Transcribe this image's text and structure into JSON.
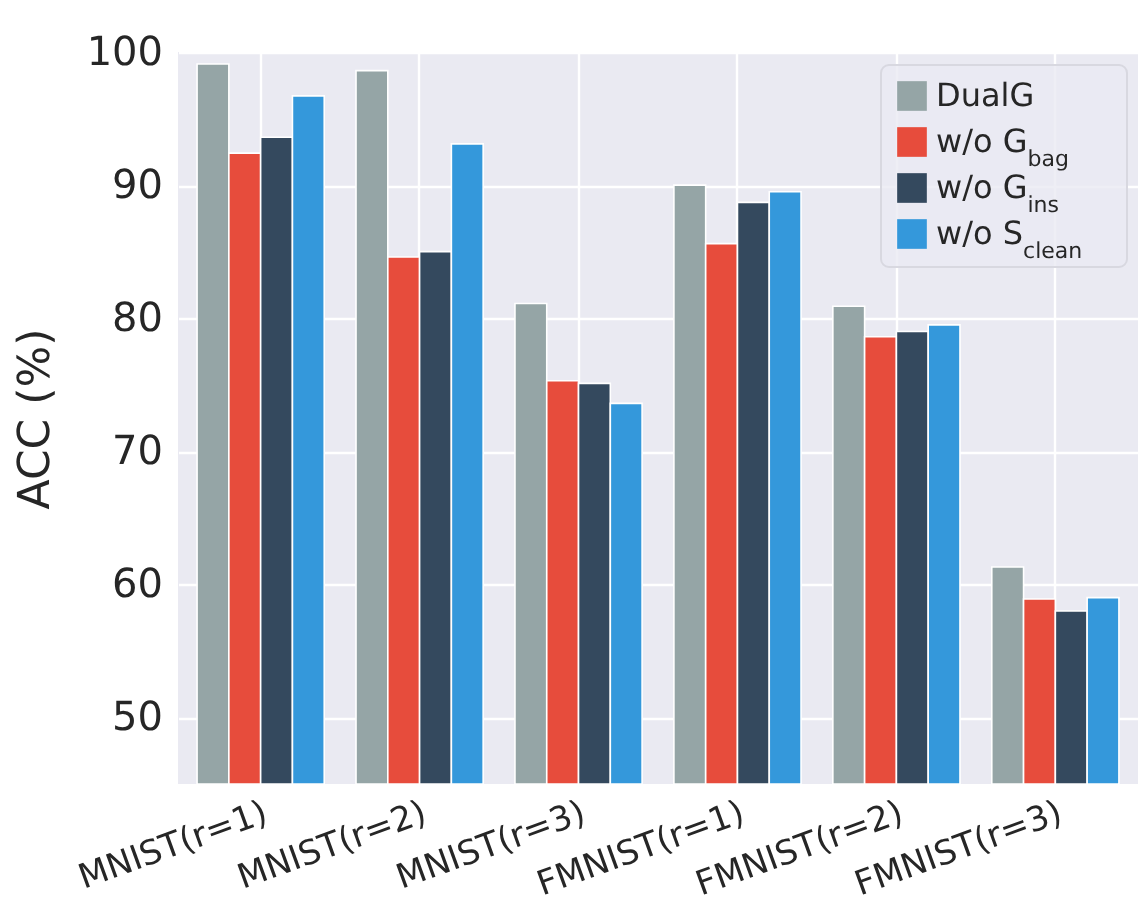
{
  "chart_data": {
    "type": "bar",
    "ylabel": "ACC (%)",
    "categories": [
      "MNIST(r=1)",
      "MNIST(r=2)",
      "MNIST(r=3)",
      "FMNIST(r=1)",
      "FMNIST(r=2)",
      "FMNIST(r=3)"
    ],
    "series": [
      {
        "name": "DualG",
        "color": "#95a5a6",
        "values": [
          99.1,
          98.6,
          81.1,
          90.0,
          80.9,
          61.3
        ]
      },
      {
        "name": "w/o G$_{bag}$",
        "color": "#e74c3c",
        "values": [
          92.4,
          84.6,
          75.3,
          85.6,
          78.6,
          58.9
        ]
      },
      {
        "name": "w/o G$_{ins}$",
        "color": "#34495e",
        "values": [
          93.6,
          85.0,
          75.1,
          88.7,
          79.0,
          58.0
        ]
      },
      {
        "name": "w/o S$_{clean}$",
        "color": "#3498db",
        "values": [
          96.7,
          93.1,
          73.6,
          89.5,
          79.5,
          59.0
        ]
      }
    ],
    "ylim": [
      45,
      100
    ],
    "yticks": [
      50,
      60,
      70,
      80,
      90,
      100
    ],
    "grid": true,
    "legend": "top right"
  }
}
